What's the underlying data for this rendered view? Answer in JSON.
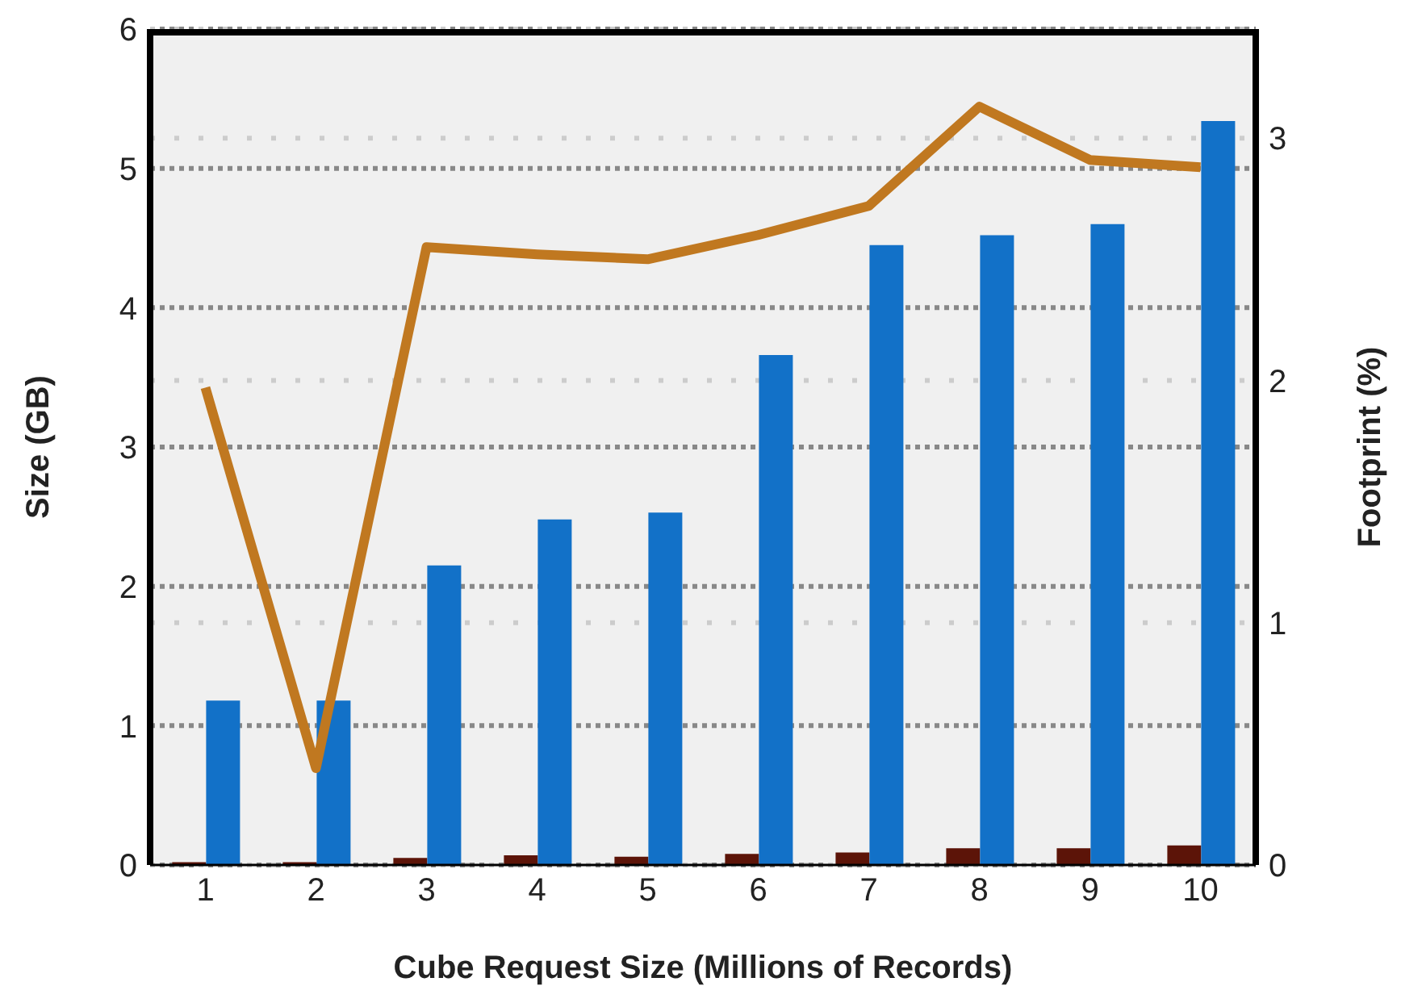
{
  "chart_data": {
    "type": "bar",
    "xlabel": "Cube Request Size (Millions of Records)",
    "ylabel": "Size (GB)",
    "y2label": "Footprint (%)",
    "categories": [
      "1",
      "2",
      "3",
      "4",
      "5",
      "6",
      "7",
      "8",
      "9",
      "10"
    ],
    "series": [
      {
        "color": "#5c1408",
        "values": [
          0.02,
          0.02,
          0.05,
          0.07,
          0.06,
          0.08,
          0.09,
          0.12,
          0.12,
          0.14
        ]
      },
      {
        "color": "#1271c8",
        "values": [
          1.18,
          1.18,
          2.15,
          2.48,
          2.53,
          3.66,
          4.45,
          4.52,
          4.6,
          5.34
        ]
      },
      {
        "type": "line",
        "axis": "y2",
        "color": "#c07820",
        "marker": "none",
        "values": [
          1.97,
          0.4,
          2.55,
          2.52,
          2.5,
          2.6,
          2.72,
          3.13,
          2.91,
          2.88
        ]
      }
    ],
    "ylim": [
      0,
      6
    ],
    "yticks": [
      0,
      1,
      2,
      3,
      4,
      5,
      6
    ],
    "y2lim": [
      0,
      3.45
    ],
    "y2ticks": [
      0,
      1,
      2,
      3
    ],
    "grid": true
  }
}
